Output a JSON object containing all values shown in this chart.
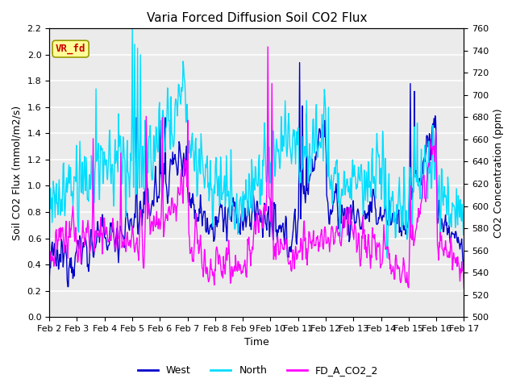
{
  "title": "Varia Forced Diffusion Soil CO2 Flux",
  "xlabel": "Time",
  "ylabel_left": "Soil CO2 Flux (mmol/m2/s)",
  "ylabel_right": "CO2 Concentration (ppm)",
  "ylim_left": [
    0.0,
    2.2
  ],
  "ylim_right": [
    500,
    760
  ],
  "xtick_labels": [
    "Feb 2",
    "Feb 3",
    "Feb 4",
    "Feb 5",
    "Feb 6",
    "Feb 7",
    "Feb 8",
    "Feb 9",
    "Feb 10",
    "Feb 11",
    "Feb 12",
    "Feb 13",
    "Feb 14",
    "Feb 15",
    "Feb 16",
    "Feb 17"
  ],
  "yticks_left": [
    0.0,
    0.2,
    0.4,
    0.6,
    0.8,
    1.0,
    1.2,
    1.4,
    1.6,
    1.8,
    2.0,
    2.2
  ],
  "yticks_right": [
    500,
    520,
    540,
    560,
    580,
    600,
    620,
    640,
    660,
    680,
    700,
    720,
    740,
    760
  ],
  "color_west": "#0000CC",
  "color_north": "#00DDFF",
  "color_fd": "#FF00FF",
  "legend_label_west": "West",
  "legend_label_north": "North",
  "legend_label_fd": "FD_A_CO2_2",
  "annotation_text": "VR_fd",
  "annotation_color": "#CC0000",
  "annotation_bg": "#FFFF99",
  "background_color": "#FFFFFF",
  "plot_bg": "#EBEBEB",
  "grid_color": "#FFFFFF",
  "title_fontsize": 11,
  "label_fontsize": 9,
  "tick_fontsize": 8,
  "legend_fontsize": 9,
  "line_width": 1.0
}
